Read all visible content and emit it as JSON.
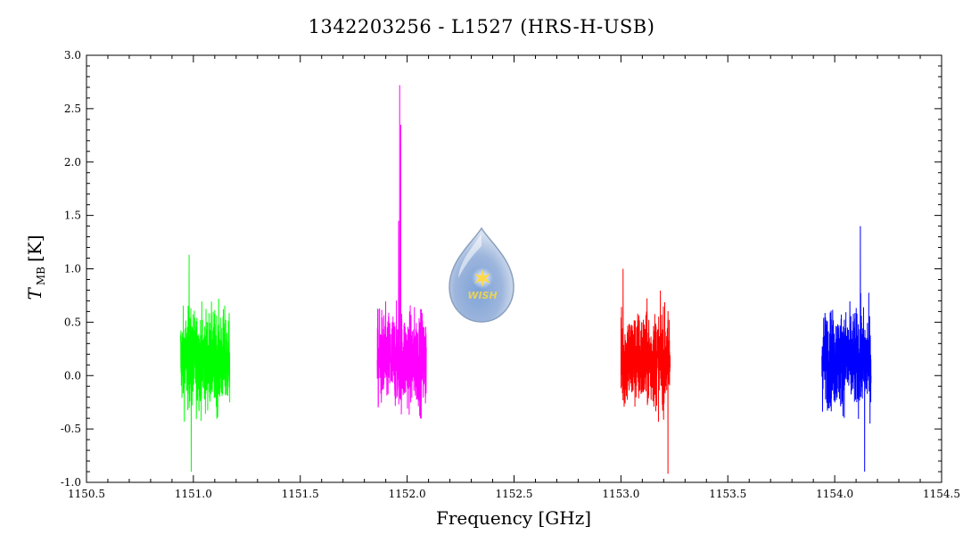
{
  "chart_data": {
    "type": "line",
    "title": "1342203256 - L1527 (HRS-H-USB)",
    "xlabel": "Frequency [GHz]",
    "ylabel_main": "T",
    "ylabel_sub": "MB",
    "ylabel_unit": "[K]",
    "xlim": [
      1150.5,
      1154.5
    ],
    "ylim": [
      -1.0,
      3.0
    ],
    "x_ticks": [
      1150.5,
      1151.0,
      1151.5,
      1152.0,
      1152.5,
      1153.0,
      1153.5,
      1154.0,
      1154.5
    ],
    "x_tick_labels": [
      "1150.5",
      "1151.0",
      "1151.5",
      "1152.0",
      "1152.5",
      "1153.0",
      "1153.5",
      "1154.0",
      "1154.5"
    ],
    "y_ticks": [
      -1.0,
      -0.5,
      0.0,
      0.5,
      1.0,
      1.5,
      2.0,
      2.5,
      3.0
    ],
    "y_tick_labels": [
      "-1.0",
      "-0.5",
      "0.0",
      "0.5",
      "1.0",
      "1.5",
      "2.0",
      "2.5",
      "3.0"
    ],
    "grid": false,
    "series": [
      {
        "color": "#00ff00",
        "x_range": [
          1150.94,
          1151.17
        ],
        "baseline": 0.15,
        "noise": 0.22,
        "min": -0.9,
        "max": 1.13,
        "peaks": [
          {
            "x": 1150.98,
            "y": 1.13
          },
          {
            "x": 1150.99,
            "y": -0.9
          }
        ]
      },
      {
        "color": "#ff00ff",
        "x_range": [
          1151.86,
          1152.09
        ],
        "baseline": 0.15,
        "noise": 0.22,
        "min": -0.55,
        "max": 2.72,
        "peaks": [
          {
            "x": 1151.965,
            "y": 2.72
          },
          {
            "x": 1151.97,
            "y": 2.35
          },
          {
            "x": 1151.96,
            "y": 1.45
          }
        ]
      },
      {
        "color": "#ff0000",
        "x_range": [
          1153.0,
          1153.23
        ],
        "baseline": 0.15,
        "noise": 0.22,
        "min": -0.92,
        "max": 1.0,
        "peaks": [
          {
            "x": 1153.22,
            "y": -0.92
          },
          {
            "x": 1153.01,
            "y": 1.0
          }
        ]
      },
      {
        "color": "#0000ff",
        "x_range": [
          1153.94,
          1154.17
        ],
        "baseline": 0.15,
        "noise": 0.22,
        "min": -0.9,
        "max": 1.4,
        "peaks": [
          {
            "x": 1154.12,
            "y": 1.4
          },
          {
            "x": 1154.14,
            "y": -0.9
          }
        ]
      }
    ]
  },
  "logo": {
    "text": "WISH"
  }
}
